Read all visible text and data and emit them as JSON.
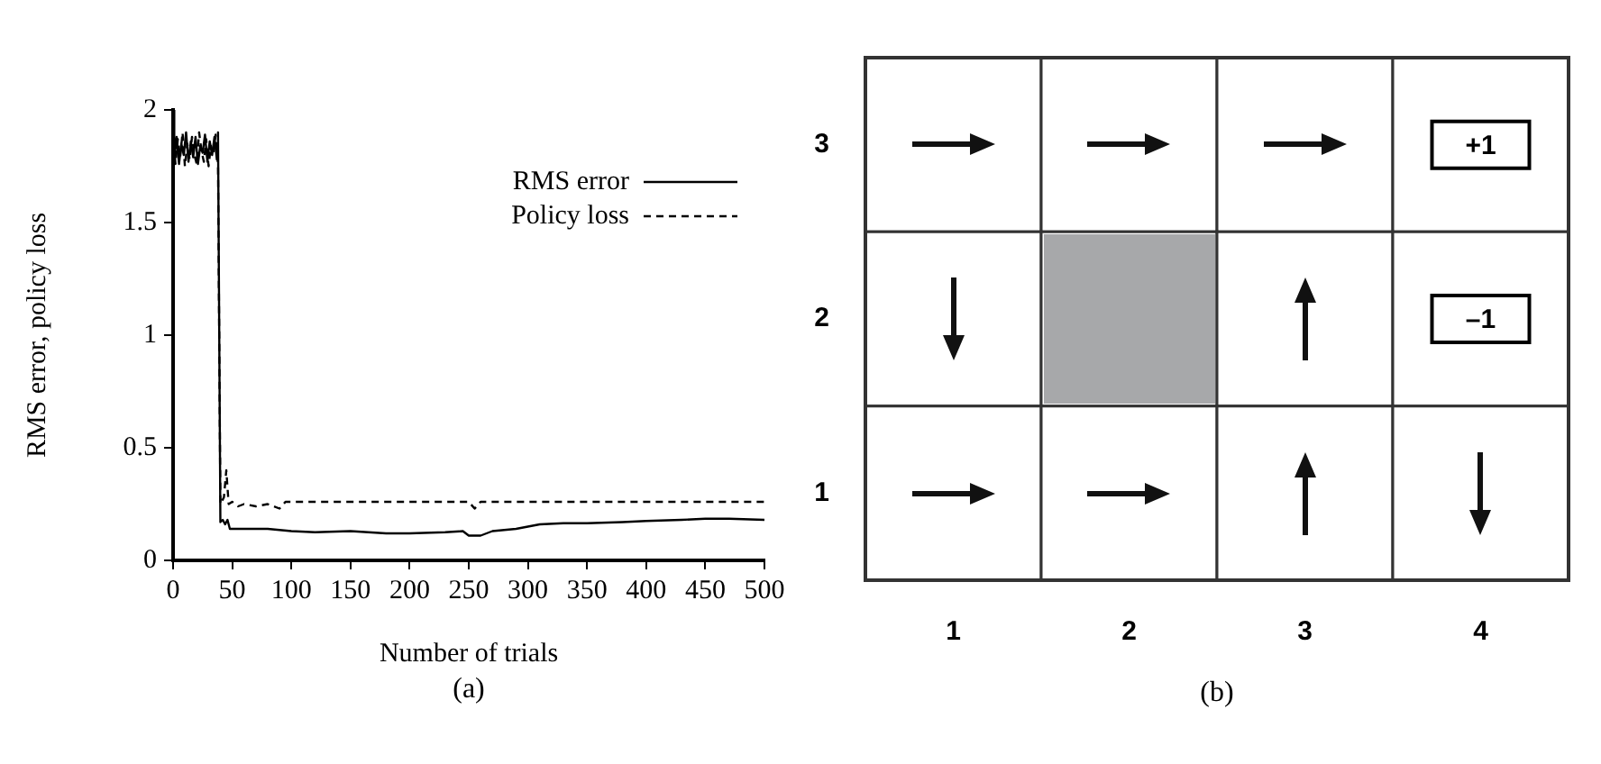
{
  "chart_data": [
    {
      "type": "line",
      "xlabel": "Number of trials",
      "ylabel": "RMS error, policy loss",
      "annotations": [
        "(a)"
      ],
      "xlim": [
        0,
        500
      ],
      "xticks": [
        0,
        50,
        100,
        150,
        200,
        250,
        300,
        350,
        400,
        450,
        500
      ],
      "ylim": [
        0,
        2
      ],
      "yticks": [
        0,
        0.5,
        1,
        1.5,
        2
      ],
      "grid": false,
      "legend": "top right",
      "marker": "none",
      "series": [
        {
          "name": "RMS error",
          "color": "#000000",
          "line_style": "solid",
          "x": [
            0,
            1,
            3,
            5,
            7,
            9,
            11,
            13,
            15,
            17,
            19,
            21,
            23,
            25,
            27,
            29,
            31,
            33,
            35,
            37,
            38,
            40,
            42,
            44,
            46,
            48,
            60,
            80,
            100,
            120,
            150,
            180,
            200,
            230,
            245,
            250,
            260,
            265,
            270,
            290,
            310,
            330,
            350,
            380,
            400,
            430,
            450,
            470,
            500
          ],
          "values": [
            2,
            1.78,
            1.88,
            1.76,
            1.85,
            1.8,
            1.9,
            1.77,
            1.86,
            1.79,
            1.88,
            1.76,
            1.84,
            1.81,
            1.89,
            1.77,
            1.86,
            1.8,
            1.88,
            1.78,
            1.9,
            0.17,
            0.18,
            0.16,
            0.18,
            0.14,
            0.14,
            0.14,
            0.13,
            0.125,
            0.13,
            0.12,
            0.12,
            0.125,
            0.13,
            0.11,
            0.11,
            0.12,
            0.13,
            0.14,
            0.16,
            0.165,
            0.165,
            0.17,
            0.175,
            0.18,
            0.185,
            0.185,
            0.18
          ]
        },
        {
          "name": "Policy loss",
          "color": "#000000",
          "line_style": "dashed",
          "x": [
            0,
            2,
            4,
            6,
            8,
            10,
            12,
            14,
            16,
            18,
            20,
            22,
            24,
            26,
            28,
            30,
            32,
            34,
            36,
            38,
            40,
            43,
            45,
            47,
            50,
            55,
            60,
            70,
            80,
            90,
            95,
            100,
            150,
            200,
            250,
            255,
            260,
            300,
            350,
            400,
            450,
            500
          ],
          "values": [
            1.9,
            1.76,
            1.87,
            1.79,
            1.9,
            1.75,
            1.85,
            1.78,
            1.88,
            1.8,
            1.76,
            1.9,
            1.82,
            1.77,
            1.87,
            1.75,
            1.84,
            1.8,
            1.89,
            1.76,
            0.25,
            0.28,
            0.4,
            0.25,
            0.26,
            0.24,
            0.25,
            0.24,
            0.25,
            0.23,
            0.26,
            0.26,
            0.26,
            0.26,
            0.26,
            0.23,
            0.26,
            0.26,
            0.26,
            0.26,
            0.26,
            0.26
          ]
        }
      ]
    },
    {
      "type": "heatmap",
      "annotations": [
        "(b)"
      ],
      "categories": [
        "1",
        "2",
        "3",
        "4"
      ],
      "y_categories": [
        "3",
        "2",
        "1"
      ],
      "cells": [
        [
          null,
          null,
          null,
          1
        ],
        [
          null,
          null,
          null,
          -1
        ],
        [
          null,
          null,
          null,
          null
        ]
      ],
      "cell_labels": [
        [
          null,
          null,
          null,
          "+1"
        ],
        [
          null,
          null,
          null,
          "–1"
        ],
        [
          null,
          null,
          null,
          null
        ]
      ]
    }
  ]
}
